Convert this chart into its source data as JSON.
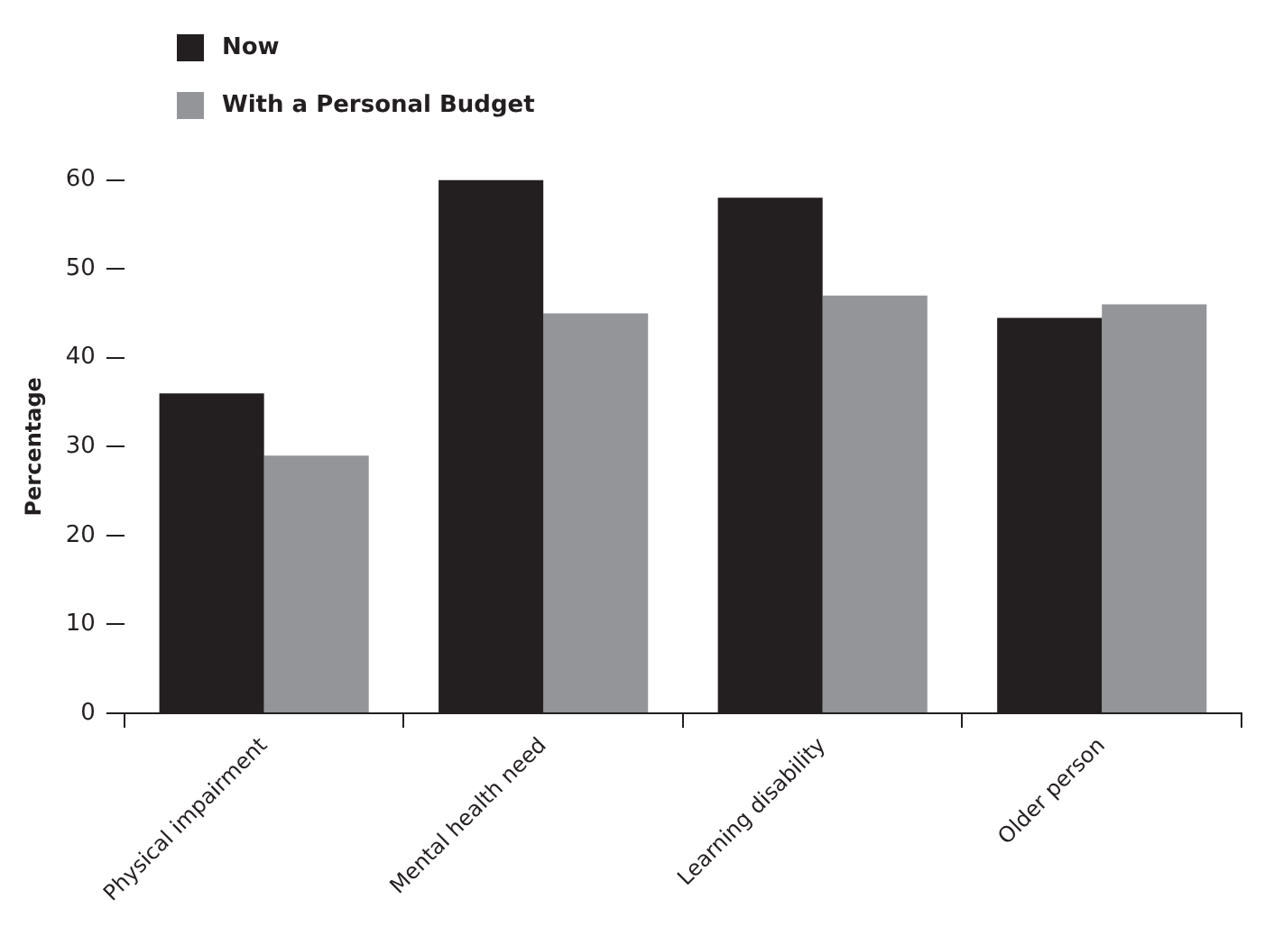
{
  "chart_data": {
    "type": "bar",
    "ylabel": "Percentage",
    "categories": [
      "Physical impairment",
      "Mental health need",
      "Learning disability",
      "Older person"
    ],
    "series": [
      {
        "name": "Now",
        "color": "#231f20",
        "values": [
          36,
          60,
          58,
          44.5
        ]
      },
      {
        "name": "With a Personal Budget",
        "color": "#939598",
        "values": [
          29,
          45,
          47,
          46
        ]
      }
    ],
    "ylim": [
      0,
      60
    ],
    "yticks": [
      0,
      10,
      20,
      30,
      40,
      50,
      60
    ],
    "grid": false,
    "legend": "top left"
  }
}
